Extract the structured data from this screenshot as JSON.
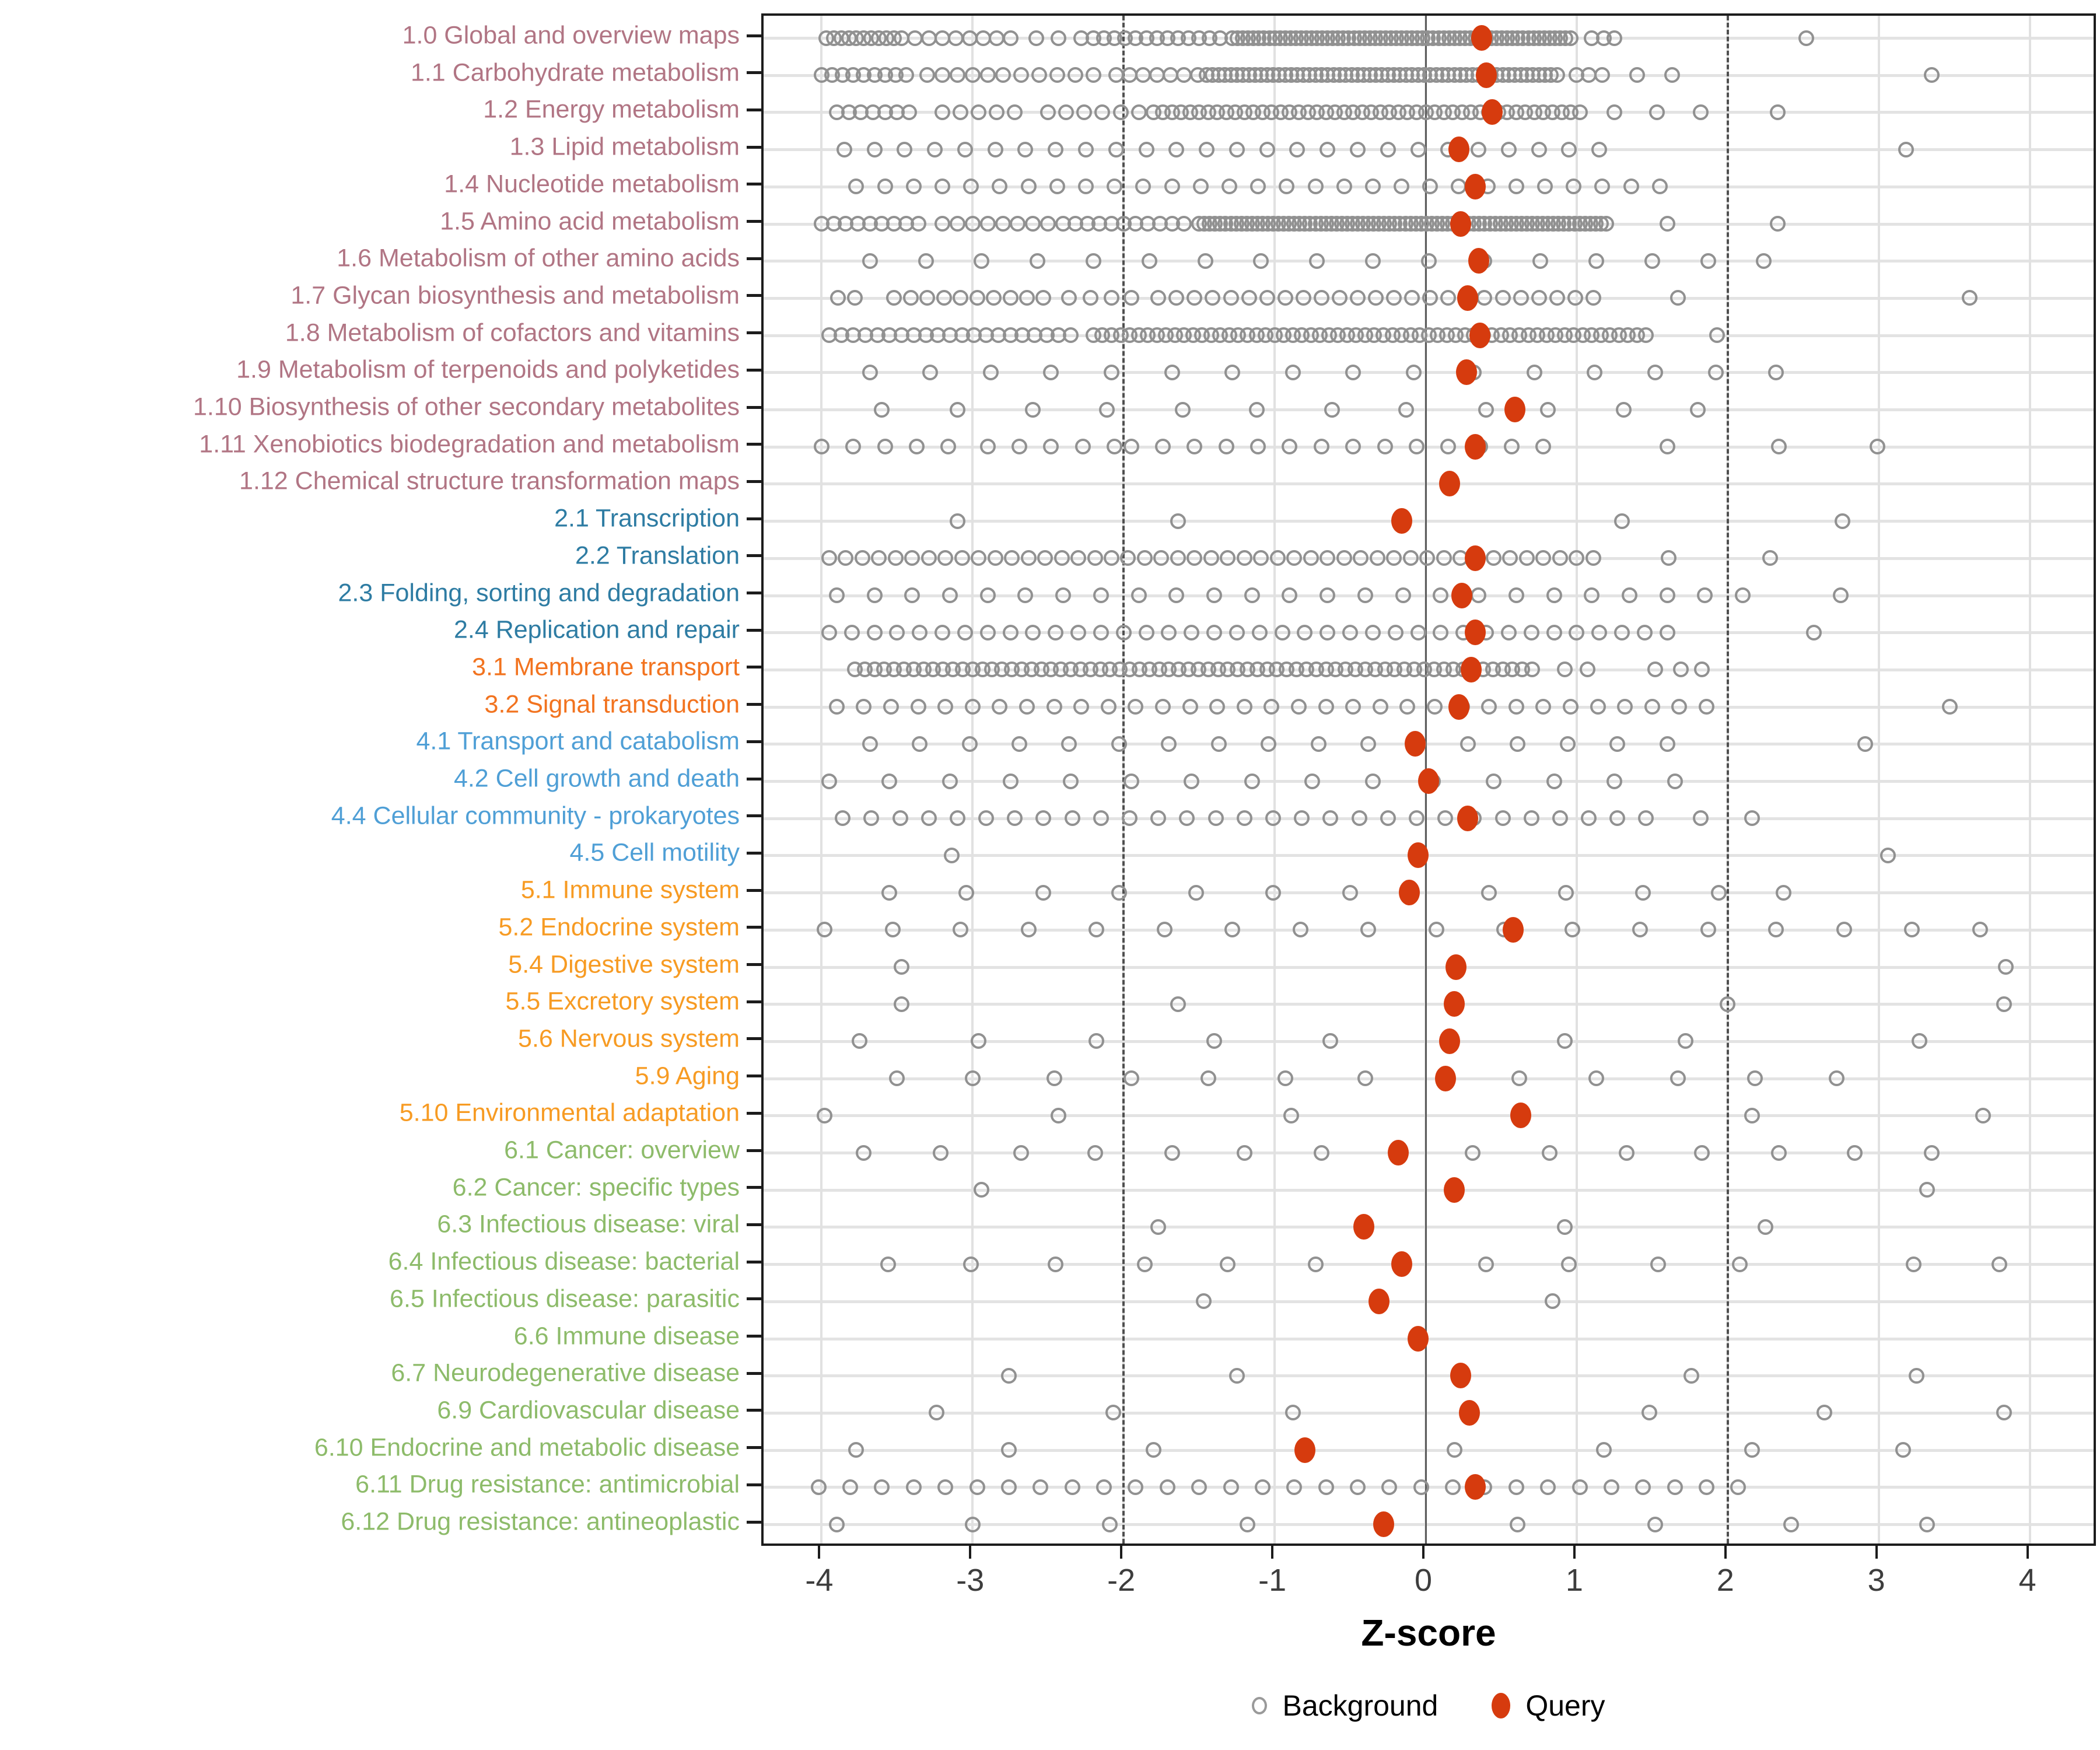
{
  "chart_data": {
    "type": "scatter",
    "title": "",
    "xlabel": "Z-score",
    "x_ticks": [
      "-4",
      "-3",
      "-2",
      "-1",
      "0",
      "1",
      "2",
      "3",
      "4"
    ],
    "x_tick_values": [
      -4,
      -3,
      -2,
      -1,
      0,
      1,
      2,
      3,
      4
    ],
    "x_range": [
      -4.38,
      4.45
    ],
    "grid": "on",
    "ref_lines": {
      "solid_zero": 0,
      "dashed": [
        -2,
        2
      ]
    },
    "legend": {
      "position": "bottom",
      "items": [
        {
          "label": "Background",
          "marker": "open-circle",
          "color": "#9a9a9a"
        },
        {
          "label": "Query",
          "marker": "filled-circle",
          "color": "#d63b0e"
        }
      ]
    },
    "group_colors": {
      "metabolism": "#b17584",
      "genetic-information-processing": "#2e7ca3",
      "environmental-information-processing": "#f2731f",
      "cellular-processes": "#4f9fd6",
      "organismal-systems": "#f79b23",
      "human-diseases": "#8dbb6a"
    },
    "point_colors": {
      "background_stroke": "#919191",
      "query_fill": "#d63b0e"
    },
    "rows": [
      {
        "label": "1.0 Global and overview maps",
        "group": "metabolism",
        "query": 0.37,
        "bg_segments": [
          [
            -3.97,
            -3.45,
            0.05
          ],
          [
            -3.38,
            -2.72,
            0.09
          ],
          [
            -2.58,
            -2.28,
            0.15
          ],
          [
            -2.2,
            -1.32,
            0.07
          ],
          [
            -1.28,
            0.98,
            0.035
          ]
        ],
        "bg_points": [
          1.1,
          1.18,
          1.25,
          2.52
        ]
      },
      {
        "label": "1.1 Carbohydrate metabolism",
        "group": "metabolism",
        "query": 0.4,
        "bg_segments": [
          [
            -4.0,
            -3.4,
            0.07
          ],
          [
            -3.3,
            -2.75,
            0.1
          ],
          [
            -2.68,
            -2.2,
            0.12
          ],
          [
            -2.05,
            -1.5,
            0.09
          ],
          [
            -1.45,
            0.9,
            0.04
          ]
        ],
        "bg_points": [
          1.0,
          1.08,
          1.17,
          1.4,
          1.63,
          3.35
        ]
      },
      {
        "label": "1.2 Energy metabolism",
        "group": "metabolism",
        "query": 0.44,
        "bg_segments": [
          [
            -3.9,
            -3.35,
            0.08
          ],
          [
            -3.2,
            -2.7,
            0.12
          ],
          [
            -2.5,
            -1.9,
            0.12
          ],
          [
            -1.8,
            1.05,
            0.06
          ]
        ],
        "bg_points": [
          1.25,
          1.53,
          1.82,
          2.33
        ]
      },
      {
        "label": "1.3 Lipid metabolism",
        "group": "metabolism",
        "query": 0.22,
        "bg_segments": [
          [
            -3.85,
            1.33,
            0.2
          ]
        ],
        "bg_points": [
          3.18
        ]
      },
      {
        "label": "1.4 Nucleotide metabolism",
        "group": "metabolism",
        "query": 0.33,
        "bg_segments": [
          [
            -3.77,
            1.63,
            0.19
          ]
        ],
        "bg_points": []
      },
      {
        "label": "1.5 Amino acid metabolism",
        "group": "metabolism",
        "query": 0.23,
        "bg_segments": [
          [
            -4.0,
            -3.3,
            0.08
          ],
          [
            -3.2,
            -2.5,
            0.1
          ],
          [
            -2.4,
            -1.6,
            0.08
          ],
          [
            -1.5,
            1.2,
            0.035
          ]
        ],
        "bg_points": [
          1.6,
          2.33
        ]
      },
      {
        "label": "1.6 Metabolism of other amino acids",
        "group": "metabolism",
        "query": 0.35,
        "bg_segments": [
          [
            -3.68,
            2.56,
            0.37
          ]
        ],
        "bg_points": []
      },
      {
        "label": "1.7 Glycan biosynthesis and metabolism",
        "group": "metabolism",
        "query": 0.28,
        "bg_segments": [
          [
            -3.52,
            -2.5,
            0.11
          ],
          [
            -1.77,
            1.18,
            0.12
          ]
        ],
        "bg_points": [
          -3.89,
          -3.78,
          -2.36,
          -2.22,
          -2.08,
          -1.95,
          1.67,
          3.6
        ]
      },
      {
        "label": "1.8 Metabolism of cofactors and vitamins",
        "group": "metabolism",
        "query": 0.36,
        "bg_segments": [
          [
            -3.95,
            -2.3,
            0.08
          ],
          [
            -2.2,
            1.46,
            0.06
          ]
        ],
        "bg_points": [
          1.93
        ]
      },
      {
        "label": "1.9 Metabolism of terpenoids and polyketides",
        "group": "metabolism",
        "query": 0.27,
        "bg_segments": [
          [
            -3.68,
            2.67,
            0.4
          ]
        ],
        "bg_points": []
      },
      {
        "label": "1.10 Biosynthesis of other secondary metabolites",
        "group": "metabolism",
        "query": 0.59,
        "bg_segments": [],
        "bg_points": [
          -3.6,
          -3.1,
          -2.6,
          -2.11,
          -1.61,
          -1.12,
          -0.62,
          -0.13,
          0.4,
          0.81,
          1.31,
          1.8
        ]
      },
      {
        "label": "1.11 Xenobiotics biodegradation and metabolism",
        "group": "metabolism",
        "query": 0.33,
        "bg_segments": [
          [
            -4.0,
            -3.0,
            0.21
          ],
          [
            -2.9,
            -2.0,
            0.21
          ],
          [
            -1.95,
            0.82,
            0.21
          ]
        ],
        "bg_points": [
          1.6,
          2.34,
          2.99
        ]
      },
      {
        "label": "1.12 Chemical structure transformation maps",
        "group": "metabolism",
        "query": 0.16,
        "bg_segments": [],
        "bg_points": []
      },
      {
        "label": "2.1 Transcription",
        "group": "genetic-information-processing",
        "query": -0.16,
        "bg_segments": [],
        "bg_points": [
          -3.1,
          -1.64,
          1.3,
          2.76
        ]
      },
      {
        "label": "2.2 Translation",
        "group": "genetic-information-processing",
        "query": 0.33,
        "bg_segments": [
          [
            -3.95,
            1.21,
            0.11
          ]
        ],
        "bg_points": [
          1.61,
          2.28
        ]
      },
      {
        "label": "2.3 Folding, sorting and degradation",
        "group": "genetic-information-processing",
        "query": 0.24,
        "bg_segments": [
          [
            -3.9,
            2.31,
            0.25
          ]
        ],
        "bg_points": [
          2.75
        ]
      },
      {
        "label": "2.4 Replication and repair",
        "group": "genetic-information-processing",
        "query": 0.33,
        "bg_segments": [
          [
            -3.95,
            1.69,
            0.15
          ]
        ],
        "bg_points": [
          2.57
        ]
      },
      {
        "label": "3.1 Membrane transport",
        "group": "environmental-information-processing",
        "query": 0.3,
        "bg_segments": [
          [
            -3.78,
            0.75,
            0.065
          ]
        ],
        "bg_points": [
          0.92,
          1.07,
          1.52,
          1.69,
          1.83
        ]
      },
      {
        "label": "3.2 Signal transduction",
        "group": "environmental-information-processing",
        "query": 0.22,
        "bg_segments": [
          [
            -3.9,
            1.86,
            0.18
          ]
        ],
        "bg_points": [
          3.47
        ]
      },
      {
        "label": "4.1 Transport and catabolism",
        "group": "cellular-processes",
        "query": -0.07,
        "bg_segments": [
          [
            -3.68,
            1.9,
            0.33
          ]
        ],
        "bg_points": [
          2.91
        ]
      },
      {
        "label": "4.2 Cell growth and death",
        "group": "cellular-processes",
        "query": 0.02,
        "bg_segments": [
          [
            -3.95,
            1.99,
            0.4
          ]
        ],
        "bg_points": []
      },
      {
        "label": "4.4 Cellular community - prokaryotes",
        "group": "cellular-processes",
        "query": 0.28,
        "bg_segments": [
          [
            -3.86,
            1.46,
            0.19
          ]
        ],
        "bg_points": [
          1.82,
          2.16
        ]
      },
      {
        "label": "4.5 Cell motility",
        "group": "cellular-processes",
        "query": -0.05,
        "bg_segments": [],
        "bg_points": [
          -3.14,
          3.06
        ]
      },
      {
        "label": "5.1 Immune system",
        "group": "organismal-systems",
        "query": -0.11,
        "bg_segments": [],
        "bg_points": [
          -3.55,
          -3.04,
          -2.53,
          -2.03,
          -1.52,
          -1.01,
          -0.5,
          0.42,
          0.93,
          1.44,
          1.94,
          2.37
        ]
      },
      {
        "label": "5.2 Endocrine system",
        "group": "organismal-systems",
        "query": 0.58,
        "bg_segments": [
          [
            -3.98,
            3.74,
            0.45
          ]
        ],
        "bg_points": []
      },
      {
        "label": "5.4 Digestive system",
        "group": "organismal-systems",
        "query": 0.2,
        "bg_segments": [],
        "bg_points": [
          -3.47,
          3.84
        ]
      },
      {
        "label": "5.5 Excretory system",
        "group": "organismal-systems",
        "query": 0.19,
        "bg_segments": [],
        "bg_points": [
          -3.47,
          -1.64,
          2.0,
          3.83
        ]
      },
      {
        "label": "5.6 Nervous system",
        "group": "organismal-systems",
        "query": 0.16,
        "bg_segments": [],
        "bg_points": [
          -3.75,
          -2.96,
          -2.18,
          -1.4,
          -0.63,
          0.92,
          1.72,
          3.27
        ]
      },
      {
        "label": "5.9 Aging",
        "group": "organismal-systems",
        "query": 0.13,
        "bg_segments": [],
        "bg_points": [
          -3.5,
          -3.0,
          -2.46,
          -1.95,
          -1.44,
          -0.93,
          -0.4,
          0.62,
          1.13,
          1.67,
          2.18,
          2.72
        ]
      },
      {
        "label": "5.10 Environmental adaptation",
        "group": "organismal-systems",
        "query": 0.63,
        "bg_segments": [],
        "bg_points": [
          -3.98,
          -2.43,
          -0.89,
          2.16,
          3.69
        ]
      },
      {
        "label": "6.1 Cancer: overview",
        "group": "human-diseases",
        "query": -0.18,
        "bg_segments": [],
        "bg_points": [
          -3.72,
          -3.21,
          -2.68,
          -2.19,
          -1.68,
          -1.2,
          -0.69,
          0.31,
          0.82,
          1.33,
          1.83,
          2.34,
          2.84,
          3.35
        ]
      },
      {
        "label": "6.2 Cancer: specific types",
        "group": "human-diseases",
        "query": 0.19,
        "bg_segments": [],
        "bg_points": [
          -2.94,
          3.32
        ]
      },
      {
        "label": "6.3 Infectious disease: viral",
        "group": "human-diseases",
        "query": -0.41,
        "bg_segments": [],
        "bg_points": [
          -1.77,
          0.92,
          2.25
        ]
      },
      {
        "label": "6.4 Infectious disease: bacterial",
        "group": "human-diseases",
        "query": -0.16,
        "bg_segments": [],
        "bg_points": [
          -3.56,
          -3.01,
          -2.45,
          -1.86,
          -1.31,
          -0.73,
          0.4,
          0.95,
          1.54,
          2.08,
          3.23,
          3.8
        ]
      },
      {
        "label": "6.5 Infectious disease: parasitic",
        "group": "human-diseases",
        "query": -0.31,
        "bg_segments": [],
        "bg_points": [
          -1.47,
          0.84
        ]
      },
      {
        "label": "6.6 Immune disease",
        "group": "human-diseases",
        "query": -0.05,
        "bg_segments": [],
        "bg_points": []
      },
      {
        "label": "6.7 Neurodegenerative disease",
        "group": "human-diseases",
        "query": 0.23,
        "bg_segments": [],
        "bg_points": [
          -2.76,
          -1.25,
          1.76,
          3.25
        ]
      },
      {
        "label": "6.9 Cardiovascular disease",
        "group": "human-diseases",
        "query": 0.29,
        "bg_segments": [],
        "bg_points": [
          -3.24,
          -2.07,
          -0.88,
          1.48,
          2.64,
          3.83
        ]
      },
      {
        "label": "6.10 Endocrine and metabolic disease",
        "group": "human-diseases",
        "query": -0.8,
        "bg_segments": [],
        "bg_points": [
          -3.77,
          -2.76,
          -1.8,
          0.19,
          1.18,
          2.16,
          3.16
        ]
      },
      {
        "label": "6.11 Drug resistance: antimicrobial",
        "group": "human-diseases",
        "query": 0.33,
        "bg_segments": [
          [
            -4.02,
            2.17,
            0.21
          ]
        ],
        "bg_points": []
      },
      {
        "label": "6.12 Drug resistance: antineoplastic",
        "group": "human-diseases",
        "query": -0.28,
        "bg_segments": [],
        "bg_points": [
          -3.9,
          -3.0,
          -2.09,
          -1.18,
          0.61,
          1.52,
          2.42,
          3.32
        ]
      }
    ]
  },
  "axis": {
    "label": "Z-score"
  },
  "legend": {
    "background_label": "Background",
    "query_label": "Query"
  }
}
